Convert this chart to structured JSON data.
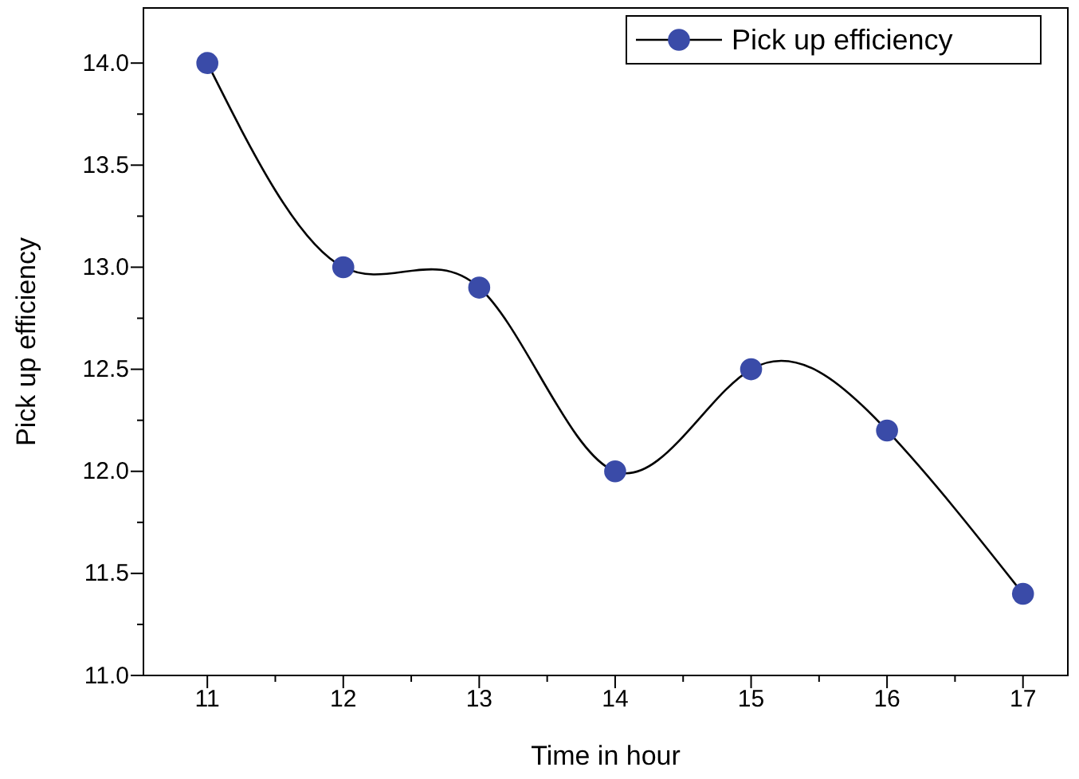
{
  "chart_data": {
    "type": "line",
    "xlabel": "Time in hour",
    "ylabel": "Pick up efficiency",
    "x": [
      11,
      12,
      13,
      14,
      15,
      16,
      17
    ],
    "series": [
      {
        "name": "Pick up efficiency",
        "color": "#3a4ba8",
        "values": [
          14.0,
          13.0,
          12.9,
          12.0,
          12.5,
          12.2,
          11.4
        ]
      }
    ],
    "xlim": [
      10.53,
      17.33
    ],
    "xticks": [
      11,
      {
        "value": 11.5,
        "label": null
      },
      12,
      {
        "value": 12.5,
        "label": null
      },
      13,
      {
        "value": 13.5,
        "label": null
      },
      14,
      {
        "value": 14.5,
        "label": null
      },
      15,
      {
        "value": 15.5,
        "label": null
      },
      16,
      {
        "value": 16.5,
        "label": null
      },
      17
    ],
    "ylim": [
      11.0,
      14.27
    ],
    "yticks": [
      {
        "value": 11.0,
        "label": "11.0"
      },
      {
        "value": 11.25,
        "label": null
      },
      {
        "value": 11.5,
        "label": "11.5"
      },
      {
        "value": 11.75,
        "label": null
      },
      {
        "value": 12.0,
        "label": "12.0"
      },
      {
        "value": 12.25,
        "label": null
      },
      {
        "value": 12.5,
        "label": "12.5"
      },
      {
        "value": 12.75,
        "label": null
      },
      {
        "value": 13.0,
        "label": "13.0"
      },
      {
        "value": 13.25,
        "label": null
      },
      {
        "value": 13.5,
        "label": "13.5"
      },
      {
        "value": 13.75,
        "label": null
      },
      {
        "value": 14.0,
        "label": "14.0"
      }
    ],
    "marker": "circle",
    "line_style": "solid",
    "legend": "top right",
    "grid": false
  }
}
